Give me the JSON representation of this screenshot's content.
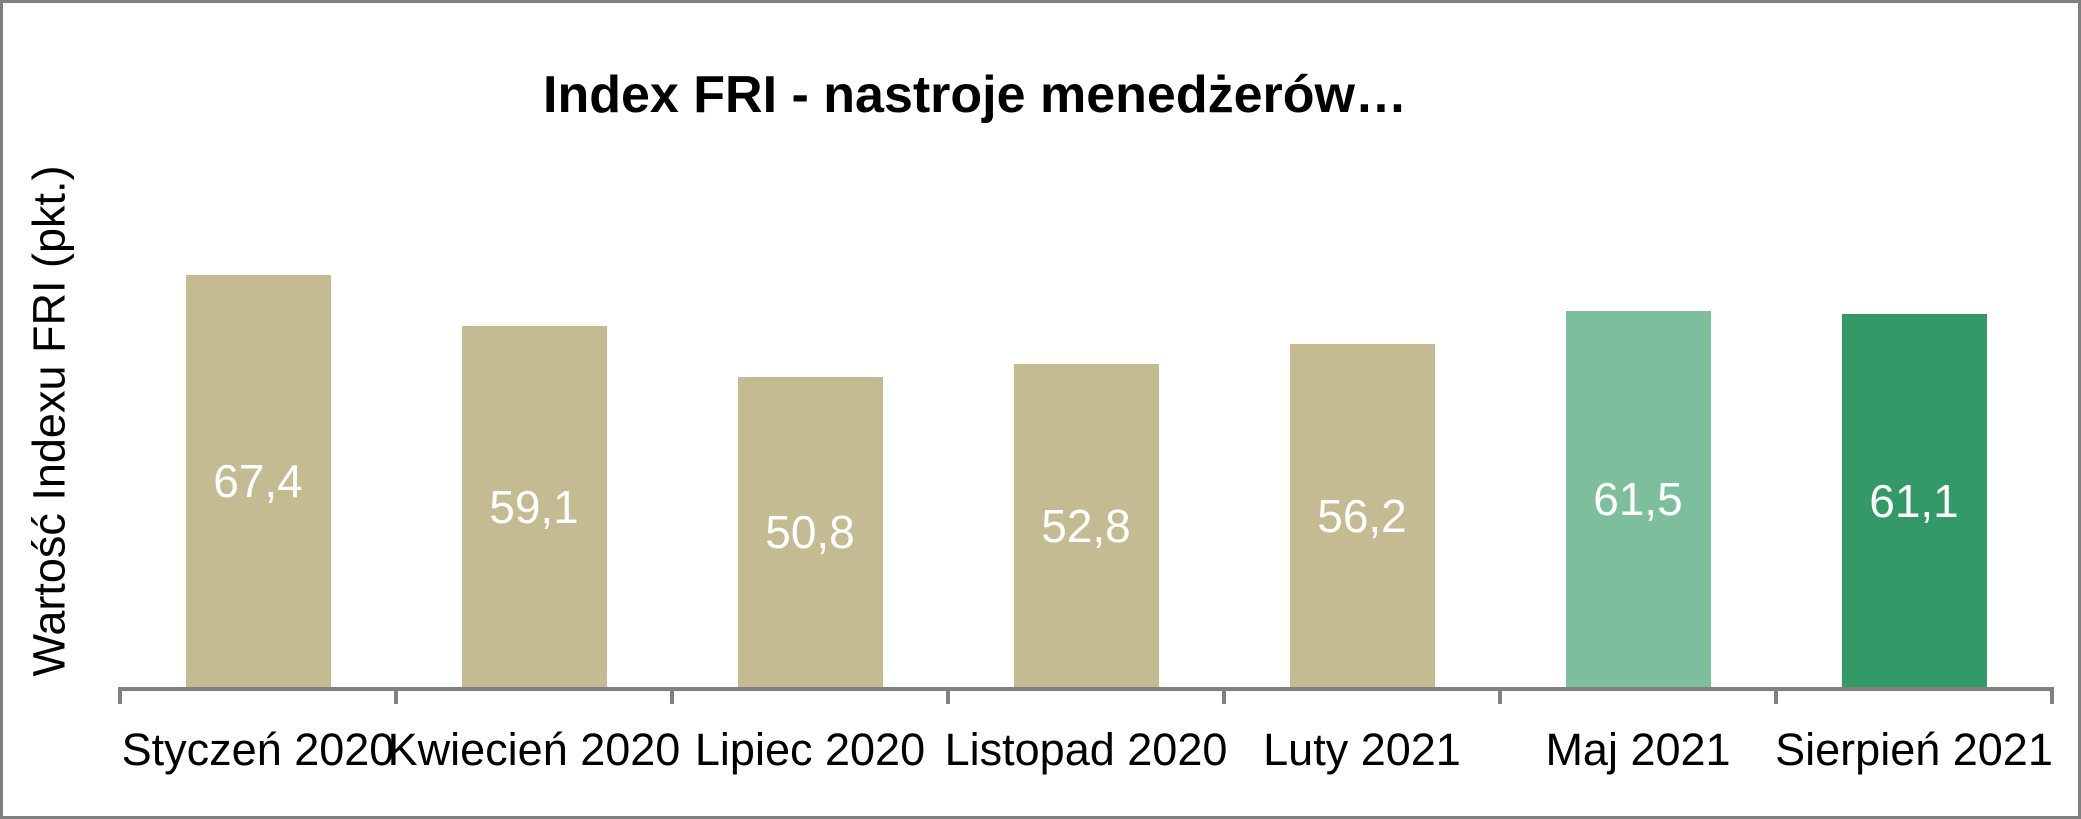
{
  "chart_data": {
    "type": "bar",
    "title": "Index FRI - nastroje menedżerów…",
    "ylabel": "Wartość Indexu FRI (pkt.)",
    "xlabel": "",
    "categories": [
      "Styczeń 2020",
      "Kwiecień 2020",
      "Lipiec 2020",
      "Listopad 2020",
      "Luty 2021",
      "Maj 2021",
      "Sierpień 2021"
    ],
    "values": [
      67.4,
      59.1,
      50.8,
      52.8,
      56.2,
      61.5,
      61.1
    ],
    "value_labels": [
      "67,4",
      "59,1",
      "50,8",
      "52,8",
      "56,2",
      "61,5",
      "61,1"
    ],
    "bar_colors": [
      "#C4BB92",
      "#C4BB92",
      "#C4BB92",
      "#C4BB92",
      "#C4BB92",
      "#7DBF9C",
      "#339966"
    ],
    "value_label_color": "#FFFFFF",
    "axis_color": "#808080",
    "ylim": [
      0,
      80
    ],
    "grid": false,
    "legend": "none",
    "value_labels_position": "inside-center"
  }
}
